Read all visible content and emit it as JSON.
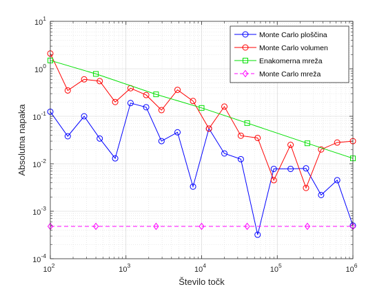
{
  "chart_data": {
    "type": "line",
    "xscale": "log",
    "yscale": "log",
    "xlim": [
      100,
      1000000
    ],
    "ylim": [
      0.0001,
      10
    ],
    "xlabel": "Število točk",
    "ylabel": "Absolutna napaka",
    "title": "",
    "grid": "major-and-minor",
    "legend_position": "top-right",
    "x_tick_labels": [
      {
        "value": 100,
        "base": "10",
        "exp": "2"
      },
      {
        "value": 1000,
        "base": "10",
        "exp": "3"
      },
      {
        "value": 10000,
        "base": "10",
        "exp": "4"
      },
      {
        "value": 100000,
        "base": "10",
        "exp": "5"
      },
      {
        "value": 1000000,
        "base": "10",
        "exp": "6"
      }
    ],
    "y_tick_labels": [
      {
        "value": 0.0001,
        "base": "10",
        "exp": "-4"
      },
      {
        "value": 0.001,
        "base": "10",
        "exp": "-3"
      },
      {
        "value": 0.01,
        "base": "10",
        "exp": "-2"
      },
      {
        "value": 0.1,
        "base": "10",
        "exp": "-1"
      },
      {
        "value": 1,
        "base": "10",
        "exp": "0"
      },
      {
        "value": 10,
        "base": "10",
        "exp": "1"
      }
    ],
    "series": [
      {
        "name": "Monte Carlo ploščina",
        "color": "#0000ff",
        "marker": "circle",
        "line": "solid",
        "x": [
          100,
          170,
          280,
          450,
          720,
          1150,
          1850,
          2950,
          4800,
          7700,
          12500,
          20000,
          33000,
          55000,
          90000,
          150000,
          240000,
          380000,
          620000,
          1000000
        ],
        "y": [
          0.125,
          0.038,
          0.1,
          0.034,
          0.013,
          0.19,
          0.155,
          0.03,
          0.046,
          0.0033,
          0.055,
          0.0165,
          0.0125,
          0.00032,
          0.0078,
          0.0078,
          0.008,
          0.0022,
          0.0045,
          0.0005
        ]
      },
      {
        "name": "Monte Carlo volumen",
        "color": "#ff0000",
        "marker": "circle",
        "line": "solid",
        "x": [
          100,
          170,
          280,
          450,
          720,
          1150,
          1850,
          2950,
          4800,
          7700,
          12500,
          20000,
          33000,
          55000,
          90000,
          150000,
          240000,
          380000,
          620000,
          1000000
        ],
        "y": [
          2.1,
          0.35,
          0.6,
          0.55,
          0.2,
          0.39,
          0.28,
          0.135,
          0.36,
          0.21,
          0.055,
          0.16,
          0.039,
          0.035,
          0.0045,
          0.025,
          0.0031,
          0.02,
          0.028,
          0.03
        ]
      },
      {
        "name": "Enakomerna mreža",
        "color": "#00e000",
        "marker": "square",
        "line": "solid",
        "x": [
          100,
          400,
          2500,
          10000,
          40000,
          250000,
          1000000
        ],
        "y": [
          1.5,
          0.78,
          0.29,
          0.15,
          0.072,
          0.027,
          0.013
        ]
      },
      {
        "name": "Monte Carlo mreža",
        "color": "#ff00ff",
        "marker": "diamond",
        "line": "dashed",
        "x": [
          100,
          400,
          2500,
          10000,
          40000,
          250000,
          1000000
        ],
        "y": [
          0.00048,
          0.00048,
          0.00048,
          0.00048,
          0.00048,
          0.00048,
          0.00048
        ]
      }
    ]
  }
}
